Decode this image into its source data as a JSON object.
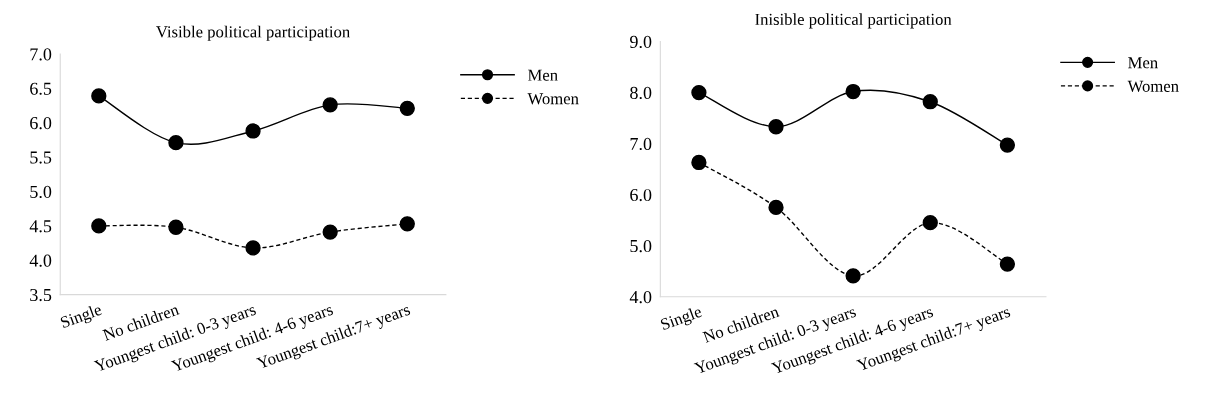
{
  "chart_data": [
    {
      "type": "line",
      "title": "Visible political participation",
      "categories": [
        "Single",
        "No children",
        "Youngest child: 0-3 years",
        "Youngest child: 4-6 years",
        "Youngest child:7+ years"
      ],
      "series": [
        {
          "name": "Men",
          "color": "#000000",
          "values": [
            6.39,
            5.71,
            5.88,
            6.26,
            6.21
          ],
          "line_style": "solid"
        },
        {
          "name": "Women",
          "color": "#000000",
          "values": [
            4.5,
            4.48,
            4.18,
            4.41,
            4.53
          ],
          "line_style": "dashed"
        }
      ],
      "ylim": [
        3.5,
        7.0
      ],
      "yticks": [
        {
          "value": 3.5,
          "label": "3.5"
        },
        {
          "value": 4.0,
          "label": "4.0"
        },
        {
          "value": 4.5,
          "label": "4.5"
        },
        {
          "value": 5.0,
          "label": "5.0"
        },
        {
          "value": 5.5,
          "label": "5.5"
        },
        {
          "value": 6.0,
          "label": "6.0"
        },
        {
          "value": 6.5,
          "label": "6.5"
        },
        {
          "value": 7.0,
          "label": "7.0"
        }
      ],
      "marker": "circle",
      "grid": false,
      "legend": "top right"
    },
    {
      "type": "line",
      "title": "Inisible political participation",
      "categories": [
        "Single",
        "No children",
        "Youngest child: 0-3 years",
        "Youngest child: 4-6 years",
        "Youngest child:7+ years"
      ],
      "series": [
        {
          "name": "Men",
          "color": "#000000",
          "values": [
            8.0,
            7.33,
            8.02,
            7.82,
            6.97
          ],
          "line_style": "solid"
        },
        {
          "name": "Women",
          "color": "#000000",
          "values": [
            6.63,
            5.75,
            4.41,
            5.45,
            4.64
          ],
          "line_style": "dashed"
        }
      ],
      "ylim": [
        4.0,
        9.0
      ],
      "yticks": [
        {
          "value": 4.0,
          "label": "4.0"
        },
        {
          "value": 5.0,
          "label": "5.0"
        },
        {
          "value": 6.0,
          "label": "6.0"
        },
        {
          "value": 7.0,
          "label": "7.0"
        },
        {
          "value": 8.0,
          "label": "8.0"
        },
        {
          "value": 9.0,
          "label": "9.0"
        }
      ],
      "marker": "circle",
      "grid": false,
      "legend": "top right"
    }
  ]
}
